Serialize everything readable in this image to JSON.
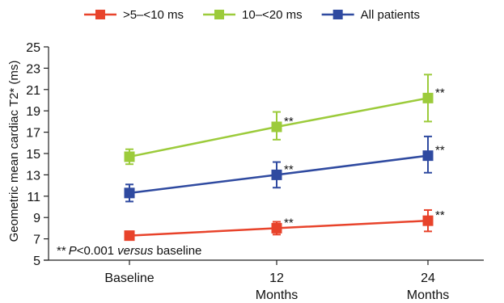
{
  "chart_data": {
    "type": "line",
    "ylabel": "Geometric mean cardiac T2* (ms)",
    "xlabel": "",
    "categories": [
      "Baseline",
      "12\nMonths",
      "24\nMonths"
    ],
    "ylim": [
      5,
      25
    ],
    "yticks": [
      5,
      7,
      9,
      11,
      13,
      15,
      17,
      19,
      21,
      23,
      25
    ],
    "grid": false,
    "legend_position": "top",
    "series": [
      {
        "name": ">5–<10 ms",
        "color": "#e8432b",
        "values": [
          7.3,
          8.0,
          8.7
        ],
        "err_low": [
          6.9,
          7.4,
          7.7
        ],
        "err_high": [
          7.7,
          8.6,
          9.7
        ],
        "annotations": [
          "",
          "**",
          "**"
        ]
      },
      {
        "name": "10–<20 ms",
        "color": "#9ccb3b",
        "values": [
          14.7,
          17.5,
          20.2
        ],
        "err_low": [
          14.0,
          16.3,
          18.0
        ],
        "err_high": [
          15.4,
          18.9,
          22.4
        ],
        "annotations": [
          "",
          "**",
          "**"
        ]
      },
      {
        "name": "All patients",
        "color": "#2f4aa0",
        "values": [
          11.3,
          13.0,
          14.8
        ],
        "err_low": [
          10.5,
          11.8,
          13.2
        ],
        "err_high": [
          12.1,
          14.2,
          16.6
        ],
        "annotations": [
          "",
          "**",
          "**"
        ]
      }
    ],
    "footnote": {
      "stars": "**",
      "p": "P",
      "rest": "<0.001 ",
      "versus": "versus",
      "tail": " baseline"
    }
  }
}
